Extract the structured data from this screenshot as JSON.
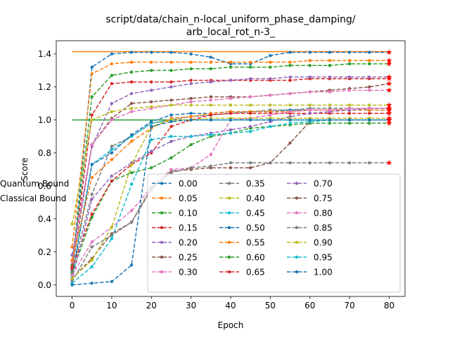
{
  "chart_data": {
    "type": "line",
    "title": "script/data/chain_n-local_uniform_phase_damping/\narb_local_rot_n-3_",
    "xlabel": "Epoch",
    "ylabel": "Score",
    "xlim": [
      -4,
      84
    ],
    "ylim": [
      -0.07,
      1.48
    ],
    "xticks": [
      0,
      10,
      20,
      30,
      40,
      50,
      60,
      70,
      80
    ],
    "yticks": [
      0.0,
      0.2,
      0.4,
      0.6,
      0.8,
      1.0,
      1.2,
      1.4
    ],
    "grid": false,
    "legend_placement": "lower right",
    "legend_columns": 3,
    "x": [
      0,
      5,
      10,
      15,
      20,
      25,
      30,
      35,
      40,
      45,
      50,
      55,
      60,
      65,
      70,
      75,
      80
    ],
    "series": [
      {
        "name": "0.00",
        "color": "#1f77b4",
        "dash": "dashed",
        "values": [
          0.09,
          1.32,
          1.4,
          1.41,
          1.41,
          1.41,
          1.4,
          1.38,
          1.34,
          1.34,
          1.39,
          1.41,
          1.41,
          1.41,
          1.41,
          1.41,
          1.41
        ]
      },
      {
        "name": "0.05",
        "color": "#ff7f0e",
        "dash": "dashed",
        "values": [
          0.23,
          1.28,
          1.34,
          1.35,
          1.35,
          1.35,
          1.35,
          1.35,
          1.35,
          1.35,
          1.35,
          1.35,
          1.36,
          1.36,
          1.36,
          1.36,
          1.36
        ]
      },
      {
        "name": "0.10",
        "color": "#2ca02c",
        "dash": "dashed",
        "values": [
          0.12,
          1.14,
          1.27,
          1.29,
          1.3,
          1.3,
          1.31,
          1.31,
          1.32,
          1.32,
          1.32,
          1.33,
          1.33,
          1.33,
          1.34,
          1.34,
          1.34
        ]
      },
      {
        "name": "0.15",
        "color": "#d62728",
        "dash": "dashed",
        "values": [
          0.11,
          1.03,
          1.22,
          1.23,
          1.23,
          1.23,
          1.24,
          1.24,
          1.24,
          1.24,
          1.24,
          1.24,
          1.25,
          1.25,
          1.25,
          1.25,
          1.25
        ]
      },
      {
        "name": "0.20",
        "color": "#9467bd",
        "dash": "dashed",
        "values": [
          0.18,
          0.84,
          1.1,
          1.16,
          1.18,
          1.2,
          1.22,
          1.23,
          1.24,
          1.25,
          1.25,
          1.26,
          1.26,
          1.26,
          1.26,
          1.26,
          1.26
        ]
      },
      {
        "name": "0.25",
        "color": "#8c564b",
        "dash": "dashed",
        "values": [
          0.1,
          0.85,
          1.01,
          1.1,
          1.11,
          1.12,
          1.13,
          1.14,
          1.14,
          1.14,
          1.15,
          1.16,
          1.17,
          1.18,
          1.19,
          1.2,
          1.22
        ]
      },
      {
        "name": "0.30",
        "color": "#e377c2",
        "dash": "dashed",
        "values": [
          0.14,
          0.85,
          1.0,
          1.05,
          1.07,
          1.09,
          1.11,
          1.12,
          1.13,
          1.14,
          1.15,
          1.16,
          1.17,
          1.17,
          1.18,
          1.18,
          1.18
        ]
      },
      {
        "name": "0.35",
        "color": "#7f7f7f",
        "dash": "dashed",
        "values": [
          0.08,
          0.55,
          0.84,
          0.9,
          0.98,
          1.0,
          1.02,
          1.03,
          1.04,
          1.05,
          1.06,
          1.06,
          1.07,
          1.07,
          1.07,
          1.07,
          1.07
        ]
      },
      {
        "name": "0.40",
        "color": "#bcbd22",
        "dash": "dashed",
        "values": [
          0.37,
          1.0,
          1.05,
          1.07,
          1.08,
          1.09,
          1.09,
          1.09,
          1.09,
          1.09,
          1.09,
          1.09,
          1.09,
          1.09,
          1.09,
          1.09,
          1.09
        ]
      },
      {
        "name": "0.45",
        "color": "#17becf",
        "dash": "dashed",
        "values": [
          0.05,
          0.73,
          0.82,
          0.9,
          0.98,
          1.0,
          1.0,
          1.0,
          1.0,
          1.0,
          1.0,
          1.0,
          1.0,
          1.0,
          1.0,
          1.0,
          1.0
        ]
      },
      {
        "name": "0.50",
        "color": "#1f77b4",
        "dash": "dashed",
        "values": [
          0.06,
          0.73,
          0.8,
          0.91,
          0.99,
          1.03,
          1.04,
          1.04,
          1.05,
          1.05,
          1.05,
          1.06,
          1.06,
          1.06,
          1.06,
          1.06,
          1.06
        ]
      },
      {
        "name": "0.55",
        "color": "#ff7f0e",
        "dash": "dashed",
        "values": [
          0.15,
          0.65,
          0.76,
          0.87,
          0.95,
          1.01,
          1.02,
          1.04,
          1.05,
          1.05,
          1.05,
          1.05,
          1.06,
          1.06,
          1.06,
          1.06,
          1.06
        ]
      },
      {
        "name": "0.60",
        "color": "#2ca02c",
        "dash": "dashed",
        "values": [
          0.07,
          0.41,
          0.63,
          0.68,
          0.71,
          0.77,
          0.85,
          0.9,
          0.92,
          0.95,
          0.96,
          0.97,
          0.98,
          0.98,
          0.98,
          0.98,
          0.98
        ]
      },
      {
        "name": "0.65",
        "color": "#d62728",
        "dash": "dashed",
        "values": [
          0.1,
          0.43,
          0.63,
          0.73,
          0.8,
          0.96,
          1.0,
          1.03,
          1.04,
          1.04,
          1.04,
          1.04,
          1.04,
          1.04,
          1.04,
          1.04,
          1.04
        ]
      },
      {
        "name": "0.70",
        "color": "#9467bd",
        "dash": "dashed",
        "values": [
          0.03,
          0.52,
          0.66,
          0.74,
          0.81,
          0.87,
          0.9,
          0.92,
          0.94,
          0.96,
          0.99,
          1.02,
          1.04,
          1.05,
          1.06,
          1.07,
          1.07
        ]
      },
      {
        "name": "0.75",
        "color": "#8c564b",
        "dash": "dashed",
        "values": [
          0.04,
          0.16,
          0.31,
          0.38,
          0.58,
          0.69,
          0.7,
          0.71,
          0.71,
          0.71,
          0.74,
          0.86,
          0.99,
          1.0,
          1.0,
          1.0,
          1.0
        ]
      },
      {
        "name": "0.80",
        "color": "#e377c2",
        "dash": "dashed",
        "values": [
          0.06,
          0.26,
          0.35,
          0.45,
          0.59,
          0.7,
          0.71,
          0.79,
          1.0,
          1.01,
          1.03,
          1.05,
          1.06,
          1.06,
          1.07,
          1.07,
          1.07
        ]
      },
      {
        "name": "0.85",
        "color": "#7f7f7f",
        "dash": "dashed",
        "values": [
          0.02,
          0.23,
          0.3,
          0.38,
          0.59,
          0.68,
          0.71,
          0.72,
          0.74,
          0.74,
          0.74,
          0.74,
          0.74,
          0.74,
          0.74,
          0.74,
          0.74
        ]
      },
      {
        "name": "0.90",
        "color": "#bcbd22",
        "dash": "dashed",
        "values": [
          0.04,
          0.15,
          0.35,
          0.73,
          0.96,
          1.0,
          1.0,
          1.01,
          1.01,
          1.01,
          1.01,
          1.01,
          1.01,
          1.01,
          1.01,
          1.01,
          1.01
        ]
      },
      {
        "name": "0.95",
        "color": "#17becf",
        "dash": "dashed",
        "values": [
          0.01,
          0.11,
          0.28,
          0.61,
          0.88,
          0.9,
          0.9,
          0.91,
          0.92,
          0.93,
          0.96,
          0.98,
          0.99,
          1.0,
          1.0,
          1.0,
          1.0
        ]
      },
      {
        "name": "1.00",
        "color": "#1f77b4",
        "dash": "dashed",
        "values": [
          0.0,
          0.01,
          0.02,
          0.12,
          0.96,
          0.99,
          1.0,
          1.0,
          1.0,
          1.0,
          1.0,
          1.0,
          1.0,
          1.0,
          1.0,
          1.0,
          1.0
        ]
      }
    ],
    "bounds": [
      {
        "name": "Quantum Bound",
        "color": "#ff7f0e",
        "y": 1.414
      },
      {
        "name": "Classical Bound",
        "color": "#2ca02c",
        "y": 1.0
      }
    ],
    "end_marker_color": "#ff0000"
  }
}
